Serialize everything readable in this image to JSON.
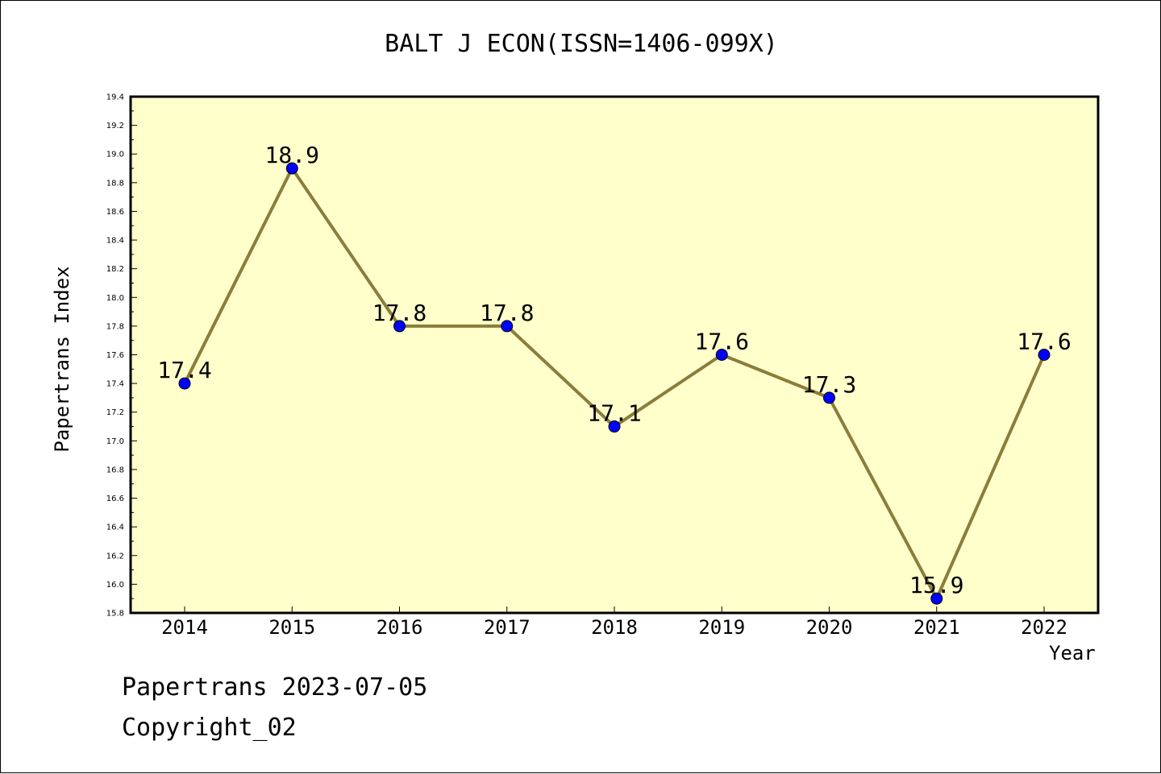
{
  "chart_data": {
    "type": "line",
    "title": "BALT J ECON(ISSN=1406-099X)",
    "xlabel": "Year",
    "ylabel": "Papertrans Index",
    "categories": [
      "2014",
      "2015",
      "2016",
      "2017",
      "2018",
      "2019",
      "2020",
      "2021",
      "2022"
    ],
    "series": [
      {
        "values": [
          17.4,
          18.9,
          17.8,
          17.8,
          17.1,
          17.6,
          17.3,
          15.9,
          17.6
        ]
      }
    ],
    "data_labels": [
      "17.4",
      "18.9",
      "17.8",
      "17.8",
      "17.1",
      "17.6",
      "17.3",
      "15.9",
      "17.6"
    ],
    "ylim": [
      15.8,
      19.4
    ],
    "yticks": [
      "15.8",
      "16.0",
      "16.2",
      "16.4",
      "16.6",
      "16.8",
      "17.0",
      "17.2",
      "17.4",
      "17.6",
      "17.8",
      "18.0",
      "18.2",
      "18.4",
      "18.6",
      "18.8",
      "19.0",
      "19.2",
      "19.4"
    ],
    "grid": false,
    "legend": "none",
    "colors": {
      "plot_background": "#ffffcc",
      "line": "#8b7d3a",
      "marker": "#0000ff"
    }
  },
  "footer": {
    "line1": "Papertrans 2023-07-05",
    "line2": "Copyright_02"
  }
}
